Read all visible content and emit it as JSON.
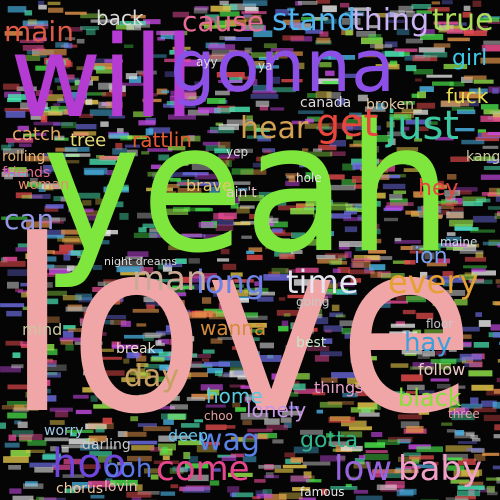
{
  "words": [
    {
      "text": "love",
      "color": "#f0a6a6"
    },
    {
      "text": "yeah",
      "color": "#7ee63c"
    },
    {
      "text": "will",
      "color": "#b43cd2"
    },
    {
      "text": "gonna",
      "color": "#8c50e6"
    },
    {
      "text": "stand",
      "color": "#50b4f0"
    },
    {
      "text": "thing",
      "color": "#c8b4f0"
    },
    {
      "text": "true",
      "color": "#aadc5a"
    },
    {
      "text": "cause",
      "color": "#e66e96"
    },
    {
      "text": "main",
      "color": "#dc5a46"
    },
    {
      "text": "get",
      "color": "#e6463c"
    },
    {
      "text": "just",
      "color": "#3cc8a0"
    },
    {
      "text": "hear",
      "color": "#d2a050"
    },
    {
      "text": "long",
      "color": "#6e82e6"
    },
    {
      "text": "time",
      "color": "#e6e6f0"
    },
    {
      "text": "every",
      "color": "#e6a032"
    },
    {
      "text": "man",
      "color": "#c8aa96"
    },
    {
      "text": "come",
      "color": "#e6468c"
    },
    {
      "text": "baby",
      "color": "#f0a0c8"
    },
    {
      "text": "low",
      "color": "#9664dc"
    },
    {
      "text": "hoo",
      "color": "#6e46dc"
    },
    {
      "text": "ooh",
      "color": "#5a78e6"
    },
    {
      "text": "black",
      "color": "#8cdc3c"
    },
    {
      "text": "hay",
      "color": "#3ca0dc"
    },
    {
      "text": "wag",
      "color": "#5a82e6"
    },
    {
      "text": "gotta",
      "color": "#32b48c"
    },
    {
      "text": "day",
      "color": "#c8a064"
    },
    {
      "text": "can",
      "color": "#9696e6"
    },
    {
      "text": "tree",
      "color": "#e6dc78"
    },
    {
      "text": "catch",
      "color": "#e6aa64"
    },
    {
      "text": "rattlin",
      "color": "#e65a32"
    },
    {
      "text": "girl",
      "color": "#3cc8e6"
    },
    {
      "text": "fuck",
      "color": "#e6dc50"
    },
    {
      "text": "ion",
      "color": "#78a0f0"
    },
    {
      "text": "hey",
      "color": "#e6463c"
    },
    {
      "text": "back",
      "color": "#dcdcdc"
    },
    {
      "text": "wanna",
      "color": "#d28c3c"
    },
    {
      "text": "home",
      "color": "#5ac8dc"
    },
    {
      "text": "lonely",
      "color": "#c896e6"
    },
    {
      "text": "deep",
      "color": "#64c8f0"
    },
    {
      "text": "follow",
      "color": "#f0c8c8"
    },
    {
      "text": "canada",
      "color": "#dcdcdc"
    },
    {
      "text": "broken",
      "color": "#e6c8a0"
    },
    {
      "text": "things",
      "color": "#e6a0c8"
    },
    {
      "text": "mind",
      "color": "#c8c8a0"
    },
    {
      "text": "kang",
      "color": "#c8c8a0"
    },
    {
      "text": "friends",
      "color": "#dc6e8c"
    },
    {
      "text": "woman",
      "color": "#e68c6e"
    },
    {
      "text": "rolling",
      "color": "#e6b478"
    },
    {
      "text": "brave",
      "color": "#e6c864"
    },
    {
      "text": "darling",
      "color": "#c8c8c8"
    },
    {
      "text": "chorus",
      "color": "#f0c8a0"
    },
    {
      "text": "famous",
      "color": "#e6e6e6"
    },
    {
      "text": "floor",
      "color": "#c8c8c8"
    },
    {
      "text": "worry",
      "color": "#a0c8e6"
    },
    {
      "text": "ayy",
      "color": "#dcdcdc"
    },
    {
      "text": "ya",
      "color": "#dcdcdc"
    },
    {
      "text": "ain't",
      "color": "#e6c8c8"
    },
    {
      "text": "going",
      "color": "#c8c8c8"
    },
    {
      "text": "three",
      "color": "#e6a0a0"
    },
    {
      "text": "hole",
      "color": "#e6e6e6"
    },
    {
      "text": "night dreams",
      "color": "#dcdcdc"
    },
    {
      "text": "maine",
      "color": "#c8dce6"
    },
    {
      "text": "break",
      "color": "#e6dcc8"
    },
    {
      "text": "best",
      "color": "#c8e6c8"
    },
    {
      "text": "lovin",
      "color": "#e6b4b4"
    },
    {
      "text": "yep",
      "color": "#dcdcdc"
    },
    {
      "text": "choo",
      "color": "#e6a0a0"
    }
  ]
}
